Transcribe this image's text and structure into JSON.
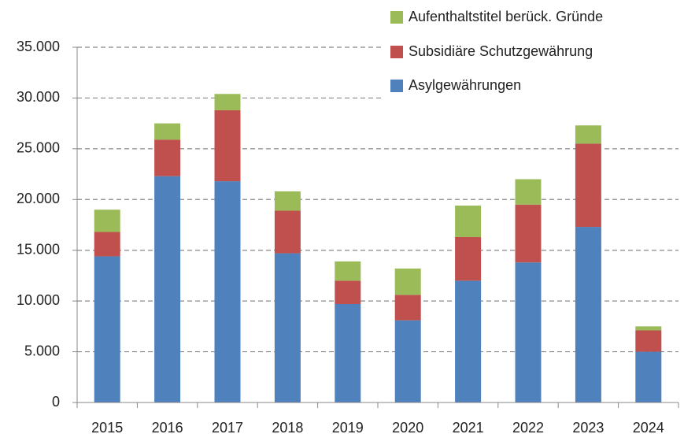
{
  "chart_data": {
    "type": "stacked_bar",
    "categories": [
      "2015",
      "2016",
      "2017",
      "2018",
      "2019",
      "2020",
      "2021",
      "2022",
      "2023",
      "2024"
    ],
    "series": [
      {
        "name": "Asylgewährungen",
        "color": "#4f81bd",
        "values": [
          14400,
          22300,
          21800,
          14700,
          9700,
          8100,
          12000,
          13800,
          17300,
          5000
        ]
      },
      {
        "name": "Subsidiäre Schutzgewährung",
        "color": "#c0504d",
        "values": [
          2400,
          3600,
          7000,
          4200,
          2300,
          2500,
          4300,
          5700,
          8200,
          2100
        ]
      },
      {
        "name": "Aufenthaltstitel berück. Gründe",
        "color": "#9bbb59",
        "values": [
          2200,
          1600,
          1600,
          1900,
          1900,
          2600,
          3100,
          2500,
          1800,
          400
        ]
      }
    ],
    "ylim": [
      0,
      35000
    ],
    "yticks": [
      0,
      {
        "value": 5000,
        "label": "5.000"
      },
      {
        "value": 10000,
        "label": "10.000"
      },
      {
        "value": 15000,
        "label": "15.000"
      },
      {
        "value": 20000,
        "label": "20.000"
      },
      {
        "value": 25000,
        "label": "25.000"
      },
      {
        "value": 30000,
        "label": "30.000"
      },
      {
        "value": 35000,
        "label": "35.000"
      }
    ],
    "grid": true,
    "legend": "top-right"
  }
}
